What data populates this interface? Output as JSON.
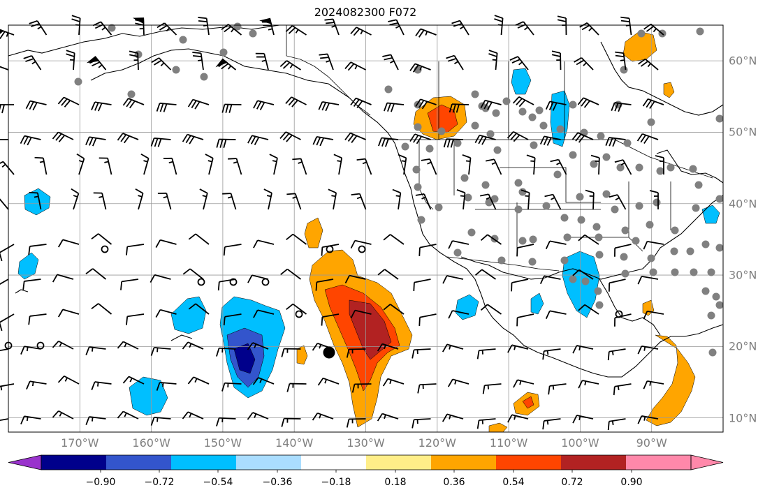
{
  "title": "2024082300 F072",
  "longitude_labels": [
    "170°W",
    "160°W",
    "150°W",
    "140°W",
    "130°W",
    "120°W",
    "110°W",
    "100°W",
    "90°W"
  ],
  "latitude_labels": [
    "60°N",
    "50°N",
    "40°N",
    "30°N",
    "20°N",
    "10°N"
  ],
  "colorbar": {
    "tick_labels": [
      "−0.90",
      "−0.72",
      "−0.54",
      "−0.36",
      "−0.18",
      "0.18",
      "0.36",
      "0.54",
      "0.72",
      "0.90"
    ],
    "colors": [
      "#9933cc",
      "#00008b",
      "#3355cc",
      "#00bfff",
      "#aaddff",
      "#ffffff",
      "#ffee88",
      "#ffa500",
      "#ff4500",
      "#b22222",
      "#ff88aa"
    ]
  },
  "colors": {
    "coastline": "#000000",
    "grid": "#999999",
    "station_dot": "#808080",
    "axis_label": "#7f7f7f"
  },
  "map_extent": {
    "lon": [
      -180,
      -80
    ],
    "lat": [
      8,
      65
    ]
  },
  "legend_placement": "bottom"
}
